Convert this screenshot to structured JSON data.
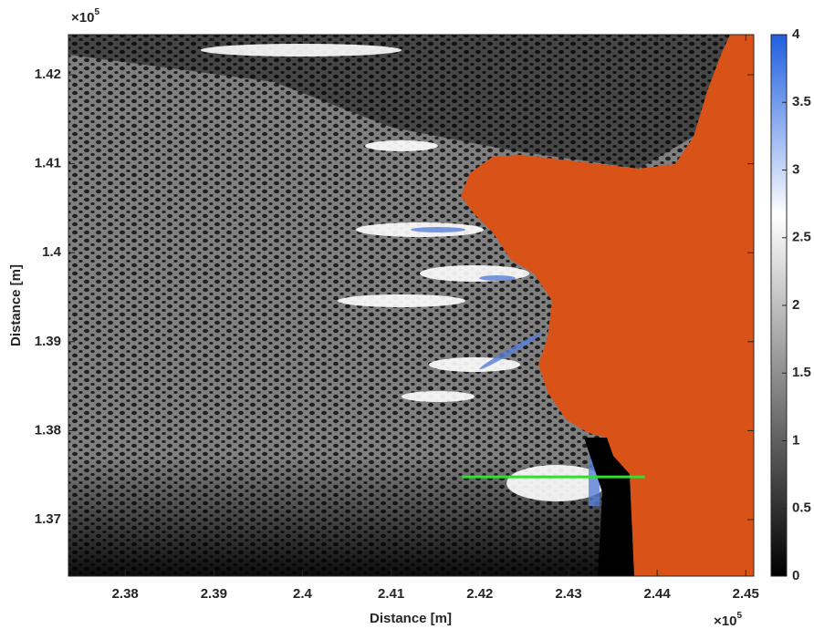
{
  "chart_data": {
    "type": "contour",
    "xlabel": "Distance [m]",
    "ylabel": "Distance [m]",
    "xlim": [
      2.3736,
      2.4509
    ],
    "ylim": [
      1.36365,
      1.42451
    ],
    "xticks": [
      2.38,
      2.39,
      2.4,
      2.41,
      2.42,
      2.43,
      2.44,
      2.45
    ],
    "yticks": [
      1.37,
      1.38,
      1.39,
      1.4,
      1.41,
      1.42
    ],
    "x_multiplier": {
      "base": "×10",
      "exponent": "5"
    },
    "y_multiplier": {
      "base": "×10",
      "exponent": "5"
    },
    "colorbar": {
      "clim": [
        0,
        4
      ],
      "ticks": [
        0,
        0.5,
        1,
        1.5,
        2,
        2.5,
        3,
        3.5,
        4
      ],
      "colormap": [
        "#000000",
        "#808080",
        "#ffffff",
        "#1f5fe0"
      ]
    },
    "land_color": "#d95319",
    "transect": {
      "x": [
        2.418,
        2.4386
      ],
      "y": [
        1.3748,
        1.3748
      ],
      "color": "#33dd33"
    },
    "grid": false
  }
}
